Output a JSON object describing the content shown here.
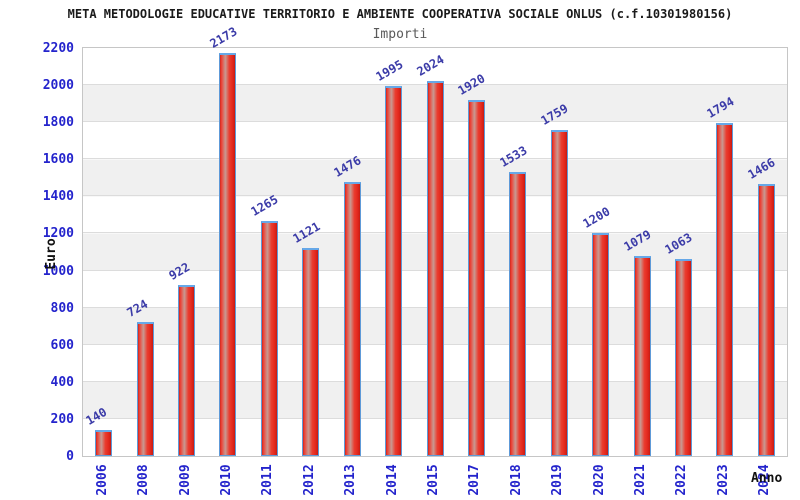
{
  "header": {
    "title": "META METODOLOGIE EDUCATIVE TERRITORIO E AMBIENTE COOPERATIVA SOCIALE ONLUS (c.f.10301980156)",
    "subtitle": "Importi"
  },
  "chart_data": {
    "type": "bar",
    "title": "META METODOLOGIE EDUCATIVE TERRITORIO E AMBIENTE COOPERATIVA SOCIALE ONLUS (c.f.10301980156)",
    "subtitle": "Importi",
    "xlabel": "Anno",
    "ylabel": "Euro",
    "categories": [
      "2006",
      "2008",
      "2009",
      "2010",
      "2011",
      "2012",
      "2013",
      "2014",
      "2015",
      "2017",
      "2018",
      "2019",
      "2020",
      "2021",
      "2022",
      "2023",
      "2024"
    ],
    "values": [
      140,
      724,
      922,
      2173,
      1265,
      1121,
      1476,
      1995,
      2024,
      1920,
      1533,
      1759,
      1200,
      1079,
      1063,
      1794,
      1466
    ],
    "ylim": [
      0,
      2200
    ],
    "yticks": [
      0,
      200,
      400,
      600,
      800,
      1000,
      1200,
      1400,
      1600,
      1800,
      2000,
      2200
    ],
    "grid": "horizontal",
    "bands": "alternating-200",
    "legend": "none",
    "value_labels": "above-bars-rotated",
    "colors": {
      "bar_main": "#e2271c",
      "bar_highlight": "#c89a92",
      "bar_border": "#5e9ad8",
      "bar_top_cap": "#66a8e8",
      "tick_label": "#2424cc",
      "value_label": "#3b3ba8",
      "axis_label": "#111111",
      "title": "#1a1a1a",
      "subtitle": "#5a5a5a",
      "band": "#f0f0f0",
      "gridline": "#dcdcdc",
      "frame": "#c6c6c6",
      "background": "#ffffff"
    }
  }
}
